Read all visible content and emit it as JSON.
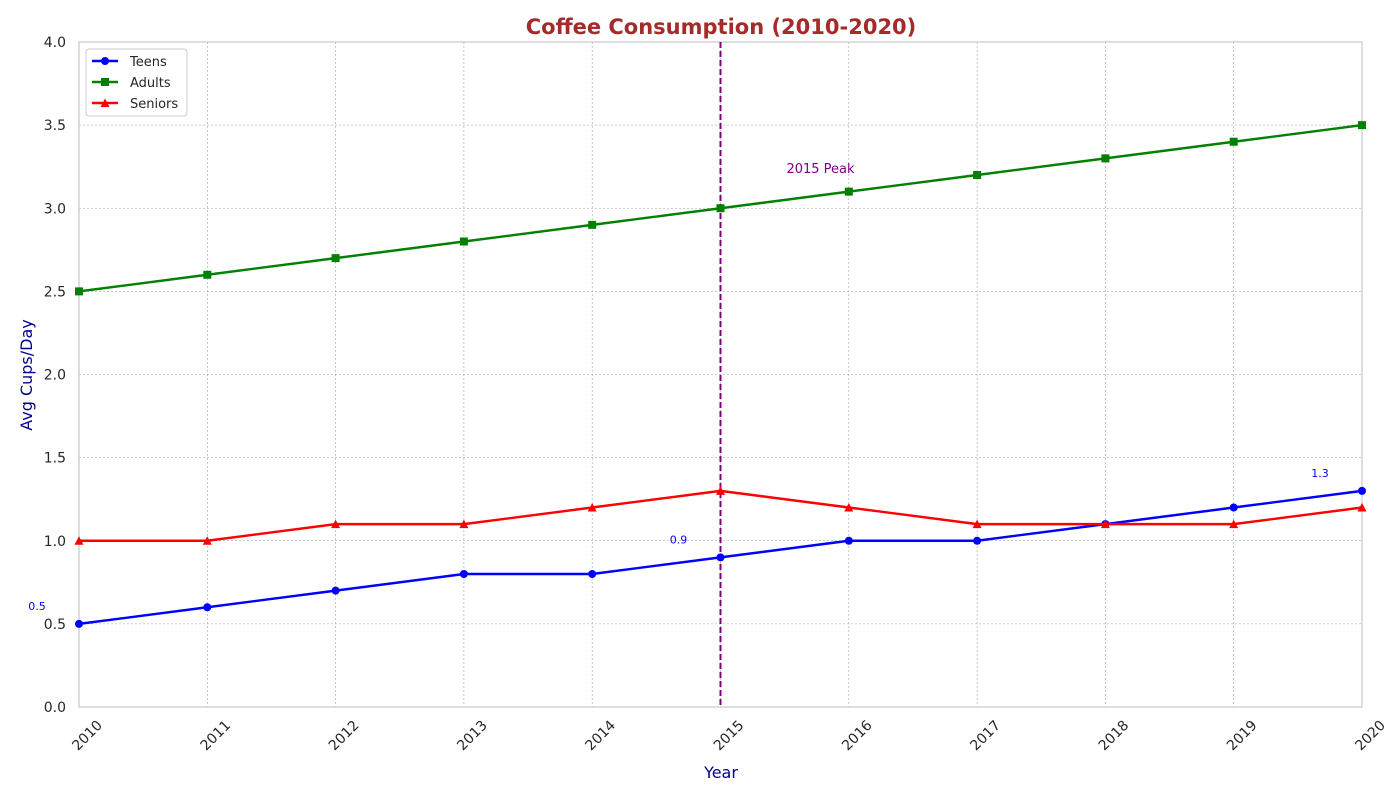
{
  "chart_data": {
    "type": "line",
    "title": "Coffee Consumption (2010-2020)",
    "xlabel": "Year",
    "ylabel": "Avg Cups/Day",
    "x": [
      2010,
      2011,
      2012,
      2013,
      2014,
      2015,
      2016,
      2017,
      2018,
      2019,
      2020
    ],
    "x_tick_labels": [
      "2010",
      "2011",
      "2012",
      "2013",
      "2014",
      "2015",
      "2016",
      "2017",
      "2018",
      "2019",
      "2020"
    ],
    "y_tick_labels": [
      "0.0",
      "0.5",
      "1.0",
      "1.5",
      "2.0",
      "2.5",
      "3.0",
      "3.5",
      "4.0"
    ],
    "xlim": [
      2010,
      2020
    ],
    "ylim": [
      0,
      4
    ],
    "grid": true,
    "legend_position": "top-left",
    "series": [
      {
        "name": "Teens",
        "color": "#0000ff",
        "marker": "circle",
        "values": [
          0.5,
          0.6,
          0.7,
          0.8,
          0.8,
          0.9,
          1.0,
          1.0,
          1.1,
          1.2,
          1.3
        ]
      },
      {
        "name": "Adults",
        "color": "#008000",
        "marker": "square",
        "values": [
          2.5,
          2.6,
          2.7,
          2.8,
          2.9,
          3.0,
          3.1,
          3.2,
          3.3,
          3.4,
          3.5
        ]
      },
      {
        "name": "Seniors",
        "color": "#ff0000",
        "marker": "triangle",
        "values": [
          1.0,
          1.0,
          1.1,
          1.1,
          1.2,
          1.3,
          1.2,
          1.1,
          1.1,
          1.1,
          1.2
        ]
      }
    ],
    "annotations": [
      {
        "text": "0.5",
        "x": 2010,
        "y": 0.5,
        "color": "#0000ff"
      },
      {
        "text": "0.9",
        "x": 2015,
        "y": 0.9,
        "color": "#0000ff"
      },
      {
        "text": "1.3",
        "x": 2020,
        "y": 1.3,
        "color": "#0000ff"
      }
    ],
    "vline": {
      "x": 2015,
      "label": "2015 Peak",
      "label_y": 3.2,
      "color": "#800080"
    },
    "colors": {
      "title": "#a52a2a",
      "axis_label": "#00008b",
      "grid": "#a0a0a0",
      "frame": "#cccccc"
    }
  }
}
